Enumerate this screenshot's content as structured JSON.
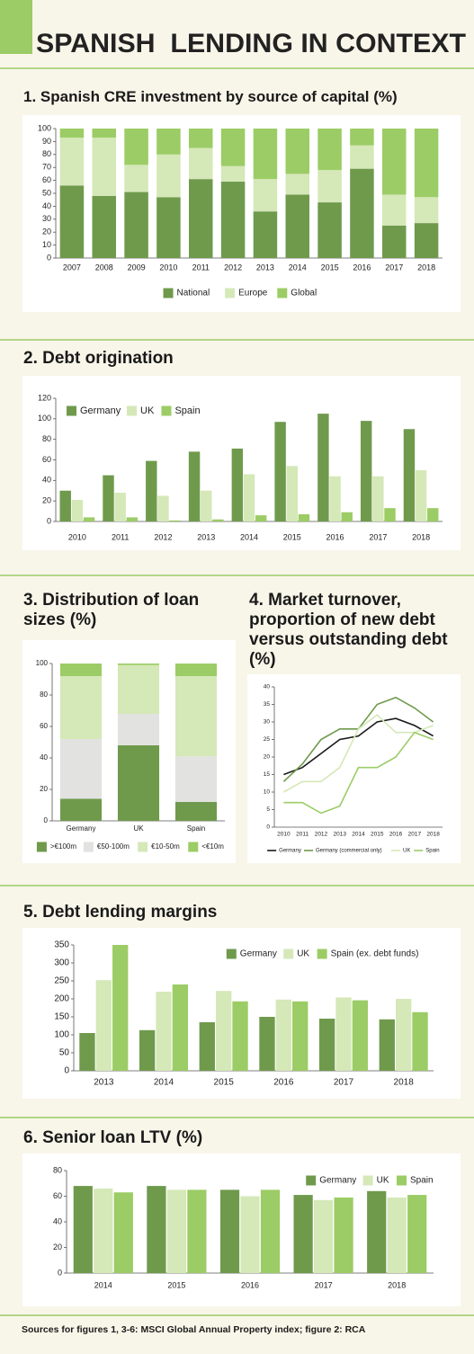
{
  "title": "SPANISH  LENDING IN CONTEXT",
  "source": "Sources for figures 1, 3-6: MSCI Global Annual Property index; figure 2: RCA",
  "chart_data": [
    {
      "type": "bar",
      "stacked": true,
      "title": "1. Spanish CRE investment by source of capital (%)",
      "categories": [
        "2007",
        "2008",
        "2009",
        "2010",
        "2011",
        "2012",
        "2013",
        "2014",
        "2015",
        "2016",
        "2017",
        "2018"
      ],
      "series": [
        {
          "name": "National",
          "color": "#6f9a4c",
          "values": [
            56,
            48,
            51,
            47,
            61,
            59,
            36,
            49,
            43,
            69,
            25,
            27
          ]
        },
        {
          "name": "Europe",
          "color": "#d5e8b8",
          "values": [
            37,
            45,
            21,
            33,
            24,
            12,
            25,
            16,
            25,
            18,
            24,
            20
          ]
        },
        {
          "name": "Global",
          "color": "#9ccc65",
          "values": [
            7,
            7,
            28,
            20,
            15,
            29,
            39,
            35,
            32,
            13,
            51,
            53
          ]
        }
      ],
      "ylim": [
        0,
        100
      ],
      "yticks": [
        0,
        10,
        20,
        30,
        40,
        50,
        60,
        70,
        80,
        90,
        100
      ],
      "grid": false,
      "legend": "bottom"
    },
    {
      "type": "bar",
      "title": "2. Debt origination",
      "categories": [
        "2010",
        "2011",
        "2012",
        "2013",
        "2014",
        "2015",
        "2016",
        "2017",
        "2018"
      ],
      "series": [
        {
          "name": "Germany",
          "color": "#6f9a4c",
          "values": [
            30,
            45,
            59,
            68,
            71,
            97,
            105,
            98,
            90
          ]
        },
        {
          "name": "UK",
          "color": "#d5e8b8",
          "values": [
            21,
            28,
            25,
            30,
            46,
            54,
            44,
            44,
            50
          ]
        },
        {
          "name": "Spain",
          "color": "#9ccc65",
          "values": [
            4,
            4,
            1,
            2,
            6,
            7,
            9,
            13,
            13
          ]
        }
      ],
      "ylim": [
        0,
        120
      ],
      "yticks": [
        0,
        20,
        40,
        60,
        80,
        100,
        120
      ],
      "grid": false,
      "legend": "top-left"
    },
    {
      "type": "bar",
      "stacked": true,
      "title": "3. Distribution of loan sizes (%)",
      "categories": [
        "Germany",
        "UK",
        "Spain"
      ],
      "series": [
        {
          "name": ">€100m",
          "color": "#6f9a4c",
          "values": [
            14,
            48,
            12
          ]
        },
        {
          "name": "€50-100m",
          "color": "#e2e2e0",
          "values": [
            38,
            20,
            29
          ]
        },
        {
          "name": "€10-50m",
          "color": "#d5e8b8",
          "values": [
            40,
            31,
            51
          ]
        },
        {
          "name": "<€10m",
          "color": "#9ccc65",
          "values": [
            8,
            1,
            8
          ]
        }
      ],
      "ylim": [
        0,
        100
      ],
      "yticks": [
        0,
        20,
        40,
        60,
        80,
        100
      ],
      "grid": false,
      "legend": "bottom"
    },
    {
      "type": "line",
      "title": "4. Market turnover, proportion of new debt versus outstanding debt (%)",
      "categories": [
        "2010",
        "2011",
        "2012",
        "2013",
        "2014",
        "2015",
        "2016",
        "2017",
        "2018"
      ],
      "series": [
        {
          "name": "Germany",
          "color": "#1a1a1a",
          "values": [
            15,
            17,
            21,
            25,
            26,
            30,
            31,
            29,
            26
          ]
        },
        {
          "name": "Germany (commercial only)",
          "color": "#6f9a4c",
          "values": [
            13,
            18,
            25,
            28,
            28,
            35,
            37,
            34,
            30
          ]
        },
        {
          "name": "UK",
          "color": "#d5e8b8",
          "values": [
            10,
            13,
            13,
            17,
            28,
            32,
            27,
            27,
            29
          ]
        },
        {
          "name": "Spain",
          "color": "#9ccc65",
          "values": [
            7,
            7,
            4,
            6,
            17,
            17,
            20,
            27,
            25
          ]
        }
      ],
      "ylim": [
        0,
        40
      ],
      "yticks": [
        0,
        5,
        10,
        15,
        20,
        25,
        30,
        35,
        40
      ],
      "grid": false,
      "legend": "bottom"
    },
    {
      "type": "bar",
      "title": "5. Debt lending margins",
      "categories": [
        "2013",
        "2014",
        "2015",
        "2016",
        "2017",
        "2018"
      ],
      "series": [
        {
          "name": "Germany",
          "color": "#6f9a4c",
          "values": [
            105,
            113,
            135,
            150,
            145,
            143
          ]
        },
        {
          "name": "UK",
          "color": "#d5e8b8",
          "values": [
            252,
            220,
            222,
            198,
            204,
            200
          ]
        },
        {
          "name": "Spain (ex. debt funds)",
          "color": "#9ccc65",
          "values": [
            350,
            240,
            193,
            193,
            196,
            163
          ]
        }
      ],
      "ylim": [
        0,
        350
      ],
      "yticks": [
        0,
        50,
        100,
        150,
        200,
        250,
        300,
        350
      ],
      "grid": false,
      "legend": "top-right"
    },
    {
      "type": "bar",
      "title": "6. Senior loan LTV (%)",
      "categories": [
        "2014",
        "2015",
        "2016",
        "2017",
        "2018"
      ],
      "series": [
        {
          "name": "Germany",
          "color": "#6f9a4c",
          "values": [
            68,
            68,
            65,
            61,
            64
          ]
        },
        {
          "name": "UK",
          "color": "#d5e8b8",
          "values": [
            66,
            65,
            60,
            57,
            59
          ]
        },
        {
          "name": "Spain",
          "color": "#9ccc65",
          "values": [
            63,
            65,
            65,
            59,
            61
          ]
        }
      ],
      "ylim": [
        0,
        80
      ],
      "yticks": [
        0,
        20,
        40,
        60,
        80
      ],
      "grid": false,
      "legend": "top-right"
    }
  ]
}
